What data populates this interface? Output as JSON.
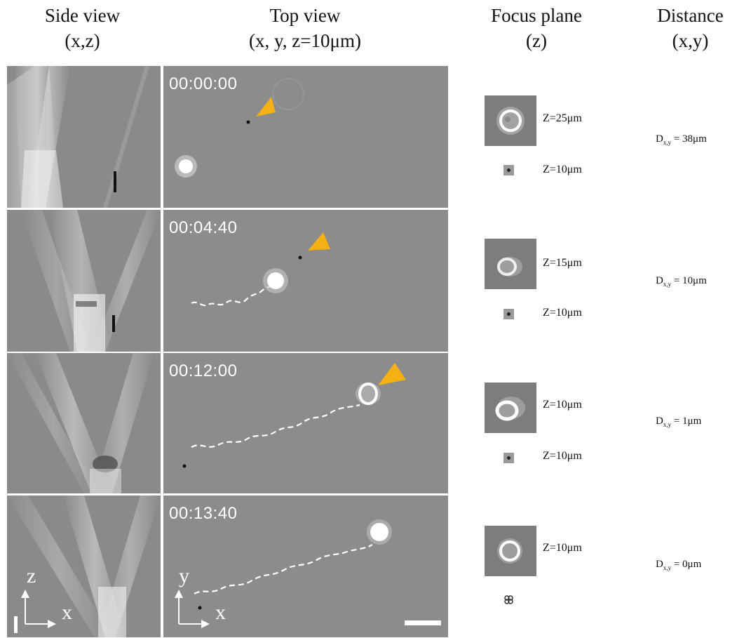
{
  "headers": {
    "side": {
      "line1": "Side view",
      "line2": "(x,z)"
    },
    "top": {
      "line1": "Top view",
      "line2": "(x, y, z=10μm)"
    },
    "focus": {
      "line1": "Focus plane",
      "line2": "(z)"
    },
    "distance": {
      "line1": "Distance",
      "line2": "(x,y)"
    }
  },
  "rows": [
    {
      "time": "00:00:00",
      "z_cell": "Z=25μm",
      "z_bead": "Z=10μm",
      "dist_prefix": "D",
      "dist_sub": "x,y",
      "dist_value": " = 38μm"
    },
    {
      "time": "00:04:40",
      "z_cell": "Z=15μm",
      "z_bead": "Z=10μm",
      "dist_prefix": "D",
      "dist_sub": "x,y",
      "dist_value": " = 10μm"
    },
    {
      "time": "00:12:00",
      "z_cell": "Z=10μm",
      "z_bead": "Z=10μm",
      "dist_prefix": "D",
      "dist_sub": "x,y",
      "dist_value": " = 1μm"
    },
    {
      "time": "00:13:40",
      "z_cell": "Z=10μm",
      "z_bead": "",
      "dist_prefix": "D",
      "dist_sub": "x,y",
      "dist_value": " = 0μm"
    }
  ],
  "axes": {
    "side": {
      "vertical": "z",
      "horizontal": "x"
    },
    "top": {
      "vertical": "y",
      "horizontal": "x"
    }
  },
  "colors": {
    "arrowhead": "#f5b014",
    "track": "#ffffff",
    "background_gray": "#8c8c8c"
  }
}
